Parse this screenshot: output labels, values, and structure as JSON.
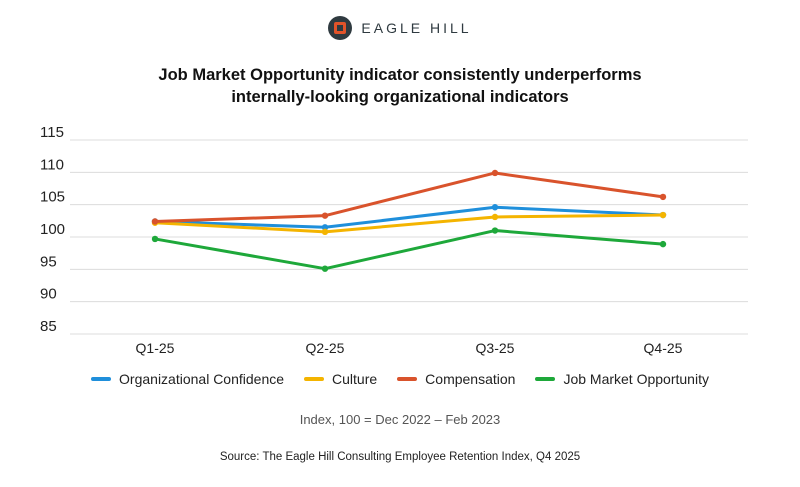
{
  "brand": {
    "name": "EAGLE HILL",
    "logo_icon": "eagle-hill-logo-icon"
  },
  "chart_data": {
    "type": "line",
    "title_line1": "Job Market Opportunity indicator consistently underperforms",
    "title_line2": "internally-looking organizational indicators",
    "categories": [
      "Q1-25",
      "Q2-25",
      "Q3-25",
      "Q4-25"
    ],
    "series": [
      {
        "name": "Organizational Confidence",
        "color": "#1f8fdb",
        "values": [
          102.4,
          101.5,
          104.6,
          103.4
        ]
      },
      {
        "name": "Culture",
        "color": "#f4b400",
        "values": [
          102.2,
          100.8,
          103.1,
          103.4
        ]
      },
      {
        "name": "Compensation",
        "color": "#d9532c",
        "values": [
          102.4,
          103.3,
          109.9,
          106.2
        ]
      },
      {
        "name": "Job Market Opportunity",
        "color": "#1ea83a",
        "values": [
          99.7,
          95.1,
          101.0,
          98.9
        ]
      }
    ],
    "y_ticks": [
      "115",
      "110",
      "105",
      "100",
      "95",
      "90",
      "85"
    ],
    "ylim": [
      85,
      115
    ],
    "grid": true,
    "legend_position": "bottom",
    "note": "Index, 100 = Dec 2022 – Feb 2023",
    "source": "Source: The Eagle Hill Consulting Employee Retention Index, Q4 2025"
  }
}
